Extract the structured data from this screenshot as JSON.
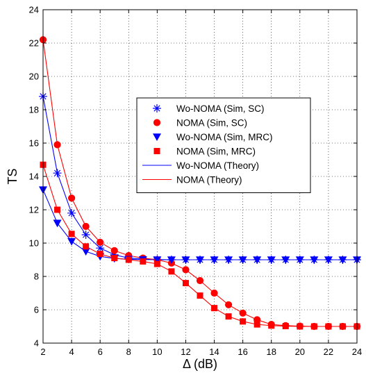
{
  "chart_data": {
    "type": "line",
    "title": "",
    "xlabel": "Δ (dB)",
    "ylabel": "TS",
    "xlim": [
      2,
      24
    ],
    "ylim": [
      4,
      24
    ],
    "x_ticks": [
      2,
      4,
      6,
      8,
      10,
      12,
      14,
      16,
      18,
      20,
      22,
      24
    ],
    "y_ticks": [
      4,
      6,
      8,
      10,
      12,
      14,
      16,
      18,
      20,
      22,
      24
    ],
    "grid": true,
    "legend_position": "center-right",
    "x": [
      2,
      3,
      4,
      5,
      6,
      7,
      8,
      9,
      10,
      11,
      12,
      13,
      14,
      15,
      16,
      17,
      18,
      19,
      20,
      21,
      22,
      23,
      24
    ],
    "series": [
      {
        "name": "Wo-NOMA (Sim, SC)",
        "kind": "markers",
        "marker": "asterisk",
        "color": "#0000ff",
        "values": [
          18.8,
          14.2,
          11.8,
          10.5,
          9.7,
          9.3,
          9.1,
          9.05,
          9.02,
          9.0,
          9.0,
          9.0,
          9.0,
          9.0,
          9.0,
          9.0,
          9.0,
          9.0,
          9.0,
          9.0,
          9.0,
          9.0,
          9.0
        ]
      },
      {
        "name": "NOMA (Sim, SC)",
        "kind": "markers",
        "marker": "circle",
        "color": "#ff0000",
        "values": [
          22.2,
          15.9,
          12.7,
          11.0,
          10.05,
          9.55,
          9.25,
          9.1,
          9.0,
          8.8,
          8.4,
          7.75,
          7.0,
          6.3,
          5.8,
          5.4,
          5.12,
          5.05,
          5.02,
          5.0,
          5.0,
          5.0,
          5.0
        ]
      },
      {
        "name": "Wo-NOMA (Sim, MRC)",
        "kind": "markers",
        "marker": "triangle-down",
        "color": "#0000ff",
        "values": [
          13.2,
          11.2,
          10.1,
          9.5,
          9.2,
          9.08,
          9.03,
          9.01,
          9.0,
          9.0,
          9.0,
          9.0,
          9.0,
          9.0,
          9.0,
          9.0,
          9.0,
          9.0,
          9.0,
          9.0,
          9.0,
          9.0,
          9.0
        ]
      },
      {
        "name": "NOMA (Sim, MRC)",
        "kind": "markers",
        "marker": "square",
        "color": "#ff0000",
        "values": [
          14.7,
          12.0,
          10.55,
          9.8,
          9.35,
          9.1,
          9.0,
          8.9,
          8.75,
          8.3,
          7.6,
          6.85,
          6.1,
          5.6,
          5.3,
          5.12,
          5.05,
          5.02,
          5.0,
          5.0,
          5.0,
          5.0,
          5.0
        ]
      },
      {
        "name": "Wo-NOMA (Theory)",
        "kind": "line",
        "color": "#0000ff",
        "curves": [
          [
            18.8,
            14.2,
            11.8,
            10.5,
            9.7,
            9.3,
            9.1,
            9.05,
            9.02,
            9.0,
            9.0,
            9.0,
            9.0,
            9.0,
            9.0,
            9.0,
            9.0,
            9.0,
            9.0,
            9.0,
            9.0,
            9.0,
            9.0
          ],
          [
            13.2,
            11.2,
            10.1,
            9.5,
            9.2,
            9.08,
            9.03,
            9.01,
            9.0,
            9.0,
            9.0,
            9.0,
            9.0,
            9.0,
            9.0,
            9.0,
            9.0,
            9.0,
            9.0,
            9.0,
            9.0,
            9.0,
            9.0
          ]
        ]
      },
      {
        "name": "NOMA (Theory)",
        "kind": "line",
        "color": "#ff0000",
        "curves": [
          [
            22.2,
            15.9,
            12.7,
            11.0,
            10.05,
            9.55,
            9.25,
            9.1,
            9.0,
            8.8,
            8.4,
            7.75,
            7.0,
            6.3,
            5.8,
            5.4,
            5.12,
            5.05,
            5.02,
            5.0,
            5.0,
            5.0,
            5.0
          ],
          [
            14.7,
            12.0,
            10.55,
            9.8,
            9.35,
            9.1,
            9.0,
            8.9,
            8.75,
            8.3,
            7.6,
            6.85,
            6.1,
            5.6,
            5.3,
            5.12,
            5.05,
            5.02,
            5.0,
            5.0,
            5.0,
            5.0,
            5.0
          ]
        ]
      }
    ]
  }
}
